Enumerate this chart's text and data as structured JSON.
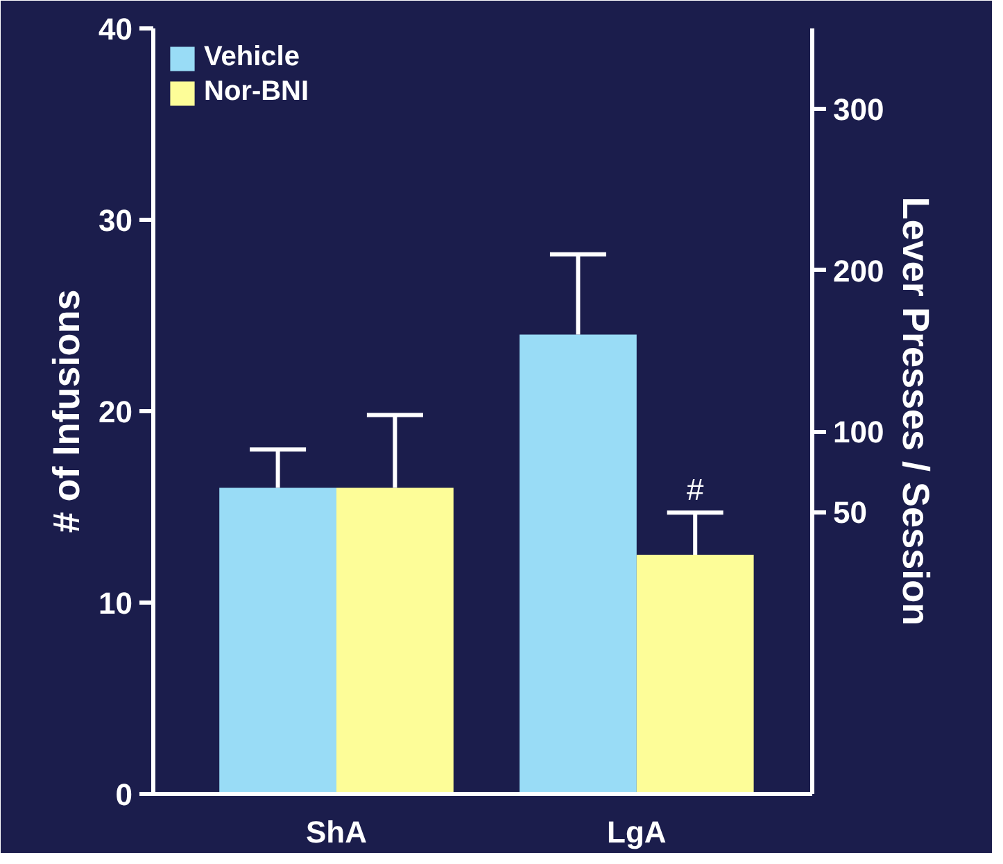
{
  "chart_data": {
    "type": "bar",
    "categories": [
      "ShA",
      "LgA"
    ],
    "series": [
      {
        "name": "Vehicle",
        "color": "#99dcf6",
        "values": [
          16,
          24
        ],
        "errors": [
          [
            16,
            18
          ],
          [
            24,
            28.2
          ]
        ]
      },
      {
        "name": "Nor-BNI",
        "color": "#fdfd98",
        "values": [
          16,
          12.5
        ],
        "errors": [
          [
            16,
            19.8
          ],
          [
            12.5,
            14.7
          ]
        ]
      }
    ],
    "ylabel": "# of Infusions",
    "y2label": "Lever Presses / Session",
    "ylim": [
      0,
      40
    ],
    "yticks": [
      0,
      10,
      20,
      30,
      40
    ],
    "y2lim": [
      -125,
      350
    ],
    "y2ticks": [
      50,
      100,
      200,
      300
    ],
    "annotations": [
      "#"
    ],
    "legend": "top left",
    "grid": false
  }
}
